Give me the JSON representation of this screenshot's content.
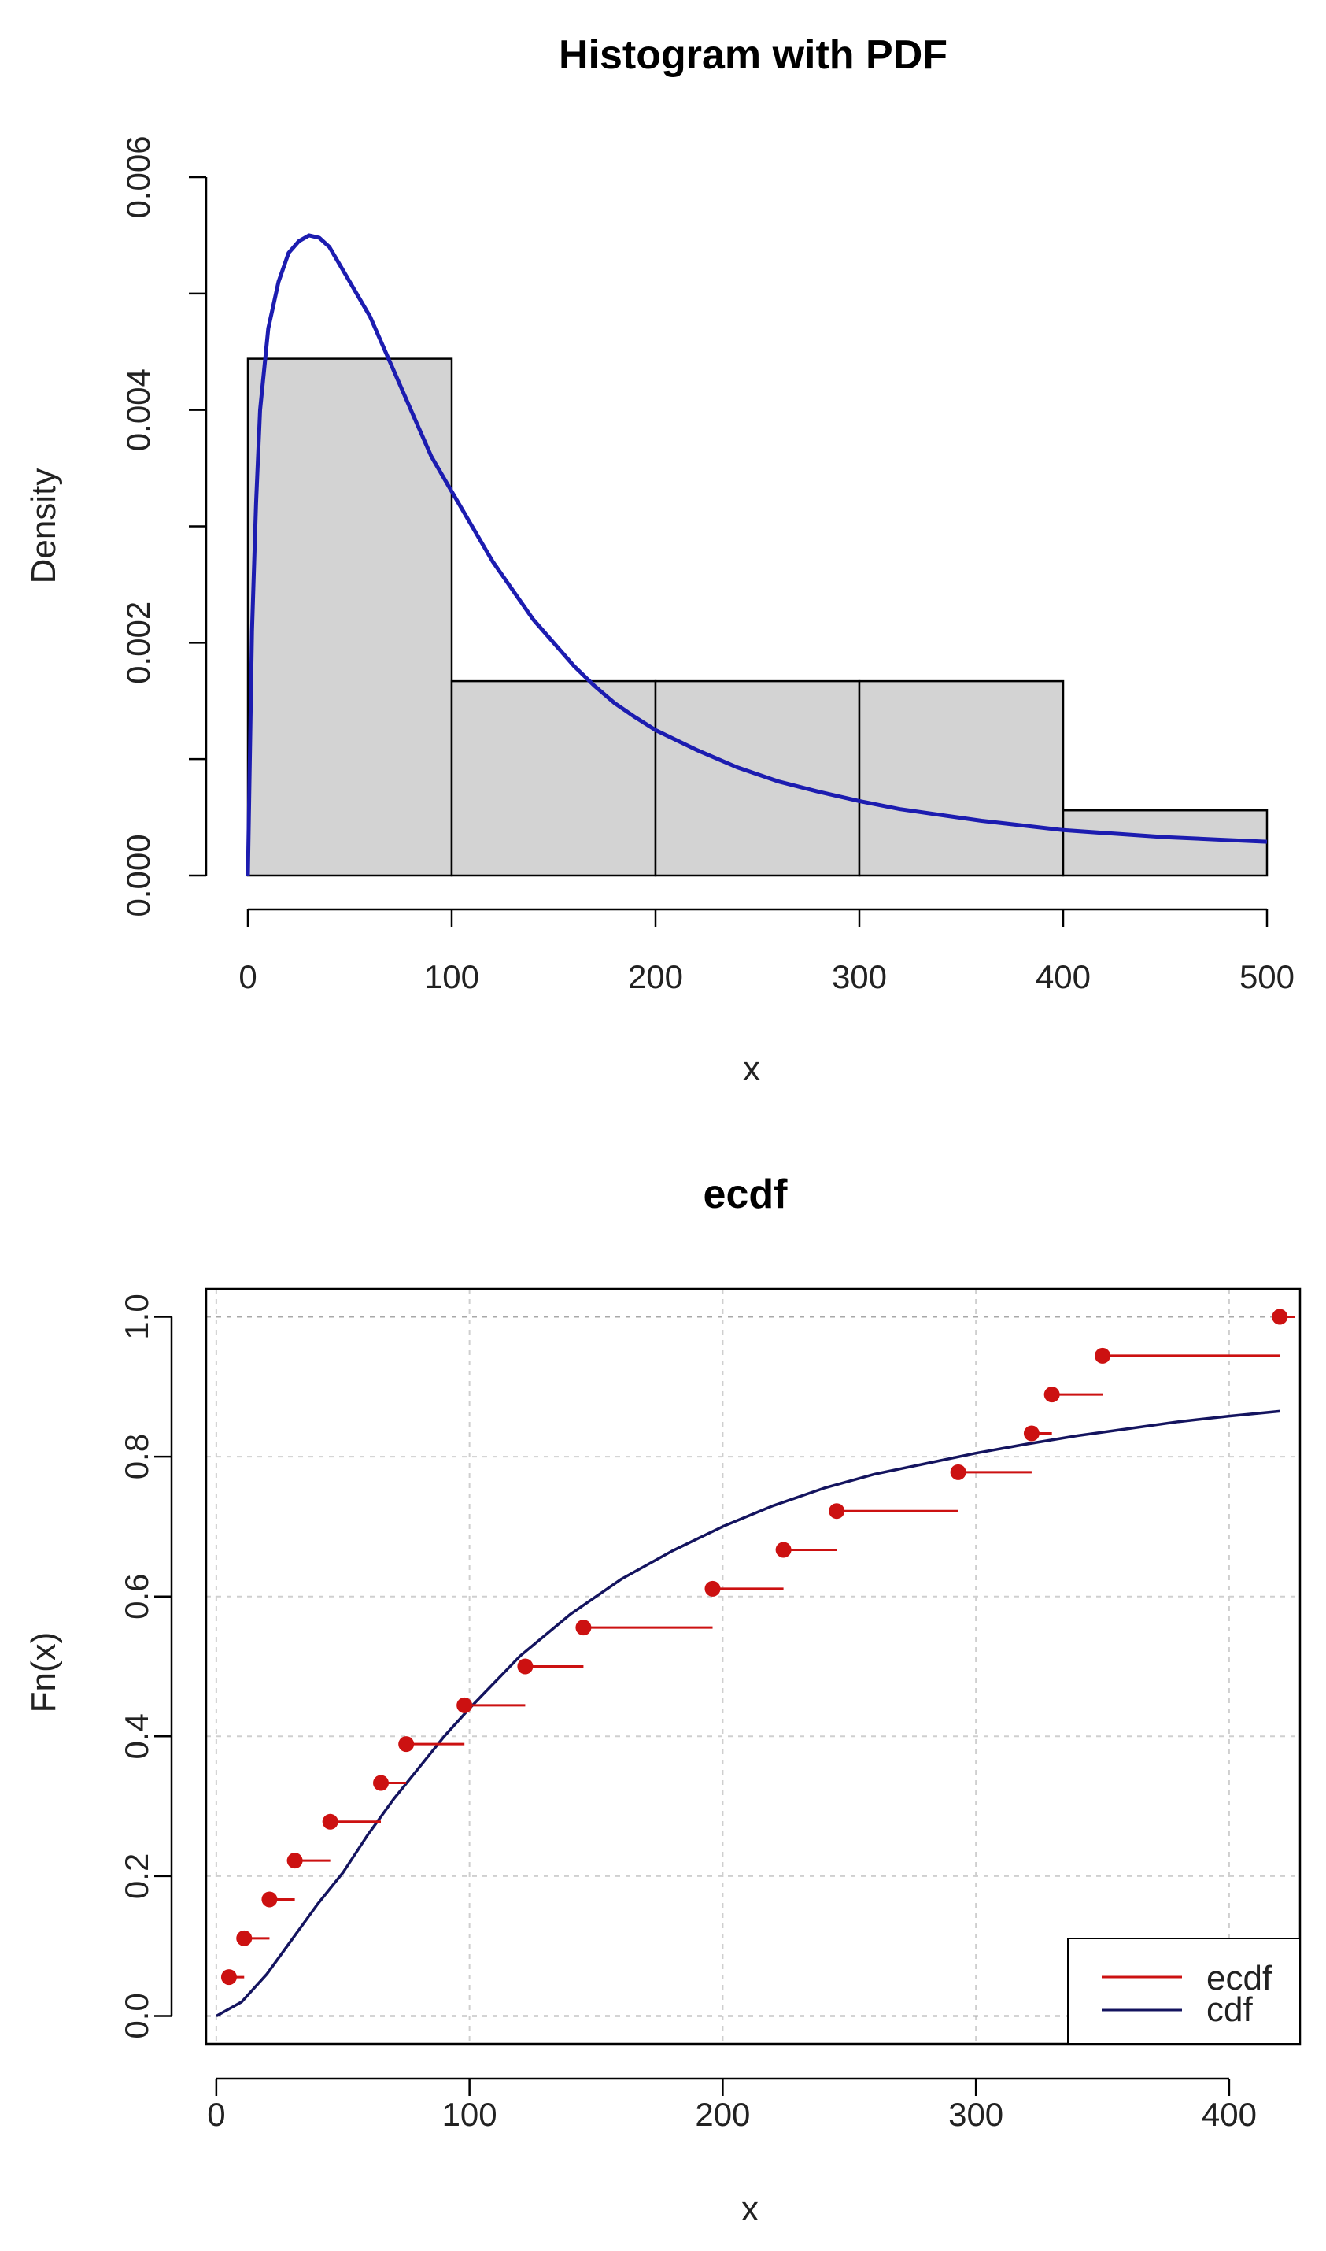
{
  "chart_data": [
    {
      "type": "bar",
      "title": "Histogram with PDF",
      "xlabel": "x",
      "ylabel": "Density",
      "xlim": [
        0,
        500
      ],
      "ylim": [
        0,
        0.006
      ],
      "x_ticks": [
        "0",
        "100",
        "200",
        "300",
        "400",
        "500"
      ],
      "y_ticks": [
        "0.000",
        "0.002",
        "0.004",
        "0.006"
      ],
      "grid": false,
      "histogram": {
        "bin_edges": [
          0,
          100,
          200,
          300,
          400,
          500
        ],
        "density": [
          0.00444,
          0.00167,
          0.00167,
          0.00167,
          0.00056
        ],
        "fill": "#d3d3d3"
      },
      "pdf_line": {
        "color": "#1c1cb0",
        "x": [
          0,
          2,
          4,
          6,
          10,
          15,
          20,
          25,
          30,
          35,
          40,
          50,
          60,
          70,
          80,
          90,
          100,
          110,
          120,
          130,
          140,
          150,
          160,
          170,
          180,
          190,
          200,
          220,
          240,
          260,
          280,
          300,
          320,
          340,
          360,
          380,
          400,
          425,
          450,
          475,
          500
        ],
        "y": [
          0,
          0.0021,
          0.0032,
          0.004,
          0.0047,
          0.0051,
          0.00535,
          0.00545,
          0.0055,
          0.00548,
          0.0054,
          0.0051,
          0.0048,
          0.0044,
          0.004,
          0.0036,
          0.0033,
          0.003,
          0.0027,
          0.00245,
          0.0022,
          0.002,
          0.0018,
          0.00163,
          0.00148,
          0.00136,
          0.00125,
          0.00108,
          0.00093,
          0.00081,
          0.00072,
          0.00064,
          0.00057,
          0.00052,
          0.00047,
          0.00043,
          0.00039,
          0.00036,
          0.00033,
          0.00031,
          0.00029
        ]
      }
    },
    {
      "type": "line",
      "title": "ecdf",
      "xlabel": "x",
      "ylabel": "Fn(x)",
      "xlim": [
        -4,
        428
      ],
      "ylim": [
        -0.04,
        1.04
      ],
      "x_ticks": [
        "0",
        "100",
        "200",
        "300",
        "400"
      ],
      "y_ticks": [
        "0.0",
        "0.2",
        "0.4",
        "0.6",
        "0.8",
        "1.0"
      ],
      "grid": true,
      "legend_position": "bottom-right",
      "series": [
        {
          "name": "ecdf",
          "color": "#cc1111",
          "points": [
            {
              "x": 5,
              "y": 0.0556,
              "x_end": 11
            },
            {
              "x": 11,
              "y": 0.1111,
              "x_end": 21
            },
            {
              "x": 21,
              "y": 0.1667,
              "x_end": 31
            },
            {
              "x": 31,
              "y": 0.2222,
              "x_end": 45
            },
            {
              "x": 45,
              "y": 0.2778,
              "x_end": 65
            },
            {
              "x": 65,
              "y": 0.3333,
              "x_end": 75
            },
            {
              "x": 75,
              "y": 0.3889,
              "x_end": 98
            },
            {
              "x": 98,
              "y": 0.4444,
              "x_end": 122
            },
            {
              "x": 122,
              "y": 0.5,
              "x_end": 145
            },
            {
              "x": 145,
              "y": 0.5556,
              "x_end": 196
            },
            {
              "x": 196,
              "y": 0.6111,
              "x_end": 224
            },
            {
              "x": 224,
              "y": 0.6667,
              "x_end": 245
            },
            {
              "x": 245,
              "y": 0.7222,
              "x_end": 293
            },
            {
              "x": 293,
              "y": 0.7778,
              "x_end": 322
            },
            {
              "x": 322,
              "y": 0.8333,
              "x_end": 330
            },
            {
              "x": 330,
              "y": 0.8889,
              "x_end": 350
            },
            {
              "x": 350,
              "y": 0.9444,
              "x_end": 420
            },
            {
              "x": 420,
              "y": 1.0,
              "x_end": 426
            }
          ]
        },
        {
          "name": "cdf",
          "color": "#14145f",
          "x": [
            0,
            10,
            20,
            30,
            40,
            50,
            60,
            70,
            80,
            90,
            100,
            120,
            140,
            160,
            180,
            200,
            220,
            240,
            260,
            280,
            300,
            320,
            340,
            360,
            380,
            400,
            420
          ],
          "y": [
            0,
            0.02,
            0.06,
            0.11,
            0.16,
            0.205,
            0.26,
            0.31,
            0.355,
            0.4,
            0.44,
            0.515,
            0.575,
            0.625,
            0.665,
            0.7,
            0.73,
            0.755,
            0.775,
            0.79,
            0.805,
            0.818,
            0.83,
            0.84,
            0.85,
            0.858,
            0.865
          ]
        }
      ]
    }
  ]
}
